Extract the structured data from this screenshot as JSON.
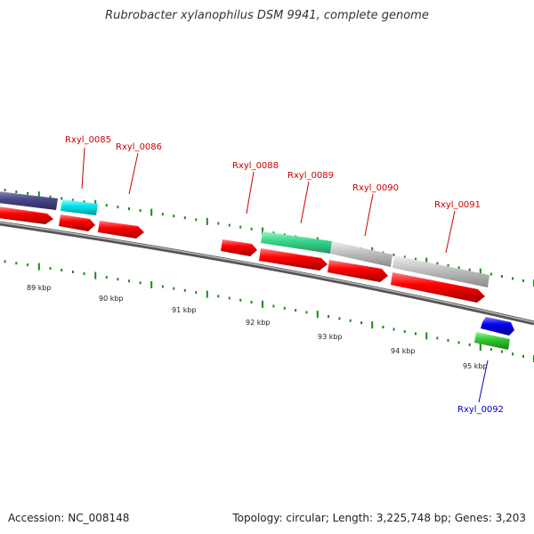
{
  "header": {
    "title": "Rubrobacter xylanophilus DSM 9941, complete genome"
  },
  "footer": {
    "accession": "Accession: NC_008148",
    "topology": "Topology: circular; Length: 3,225,748 bp; Genes: 3,203"
  },
  "scale_labels": [
    "89 kbp",
    "90 kbp",
    "91 kbp",
    "92 kbp",
    "93 kbp",
    "94 kbp",
    "95 kbp"
  ],
  "gene_labels": [
    {
      "text": "Rxyl_0085",
      "color": "#cc0000"
    },
    {
      "text": "Rxyl_0086",
      "color": "#cc0000"
    },
    {
      "text": "Rxyl_0088",
      "color": "#cc0000"
    },
    {
      "text": "Rxyl_0089",
      "color": "#cc0000"
    },
    {
      "text": "Rxyl_0090",
      "color": "#cc0000"
    },
    {
      "text": "Rxyl_0091",
      "color": "#cc0000"
    },
    {
      "text": "Rxyl_0092",
      "color": "#0000cc"
    }
  ],
  "colors": {
    "backbone": "#7a7a7a",
    "tick": "#1a8a1a",
    "cds_red": "#ff0000",
    "gene_navy": "#4a4a8a",
    "gene_cyan": "#00e5ee",
    "gene_mint": "#3cd890",
    "gene_gray": "#c4c4c4",
    "gene_blue": "#0000ee",
    "gene_green": "#33cc33"
  }
}
